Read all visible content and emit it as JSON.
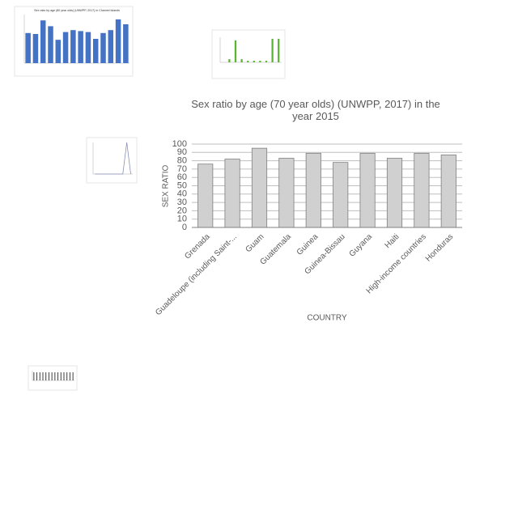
{
  "chart_data": [
    {
      "type": "bar",
      "title": "Sex ratio by age (70 year olds) (UNWPP, 2017) in the year 2015",
      "x_label": "COUNTRY",
      "y_label": "SEX RATIO",
      "categories": [
        "Grenada",
        "Guadeloupe (including Saint-...",
        "Guam",
        "Guatemala",
        "Guinea",
        "Guinea-Bissau",
        "Guyana",
        "Haiti",
        "High-income countries",
        "Honduras"
      ],
      "values": [
        76,
        82,
        95,
        83,
        89,
        78,
        89,
        83,
        89,
        87
      ],
      "color": "#d0d0d0",
      "ylim": [
        0,
        100
      ],
      "yticks": [
        0,
        10,
        20,
        30,
        40,
        50,
        60,
        70,
        80,
        90,
        100
      ],
      "grid": true
    },
    {
      "type": "bar",
      "title": "Sex ratio by age (80 year olds) (UNWPP, 2017) in Channel Islands",
      "values": [
        15.5,
        15,
        22,
        19,
        12,
        16,
        17,
        16.5,
        16,
        12.5,
        15.5,
        17,
        22.5,
        20
      ],
      "color": "#4472c4",
      "ylim": [
        0,
        25
      ]
    },
    {
      "type": "bar",
      "values": [
        0,
        2,
        14,
        2,
        1,
        1,
        1,
        1,
        15,
        15
      ],
      "color": "#5cb531",
      "ylim": [
        0,
        16
      ]
    },
    {
      "type": "line",
      "values": [
        0,
        0,
        0,
        0,
        0,
        0,
        0,
        0,
        10,
        0
      ],
      "color": "#8a8fb8",
      "ylim": [
        0,
        10
      ]
    },
    {
      "type": "bar",
      "values": [
        10,
        10,
        10,
        10,
        10,
        10,
        10,
        10,
        10,
        10,
        10,
        10,
        10,
        10
      ],
      "color": "#333333",
      "ylim": [
        0,
        12
      ]
    }
  ]
}
